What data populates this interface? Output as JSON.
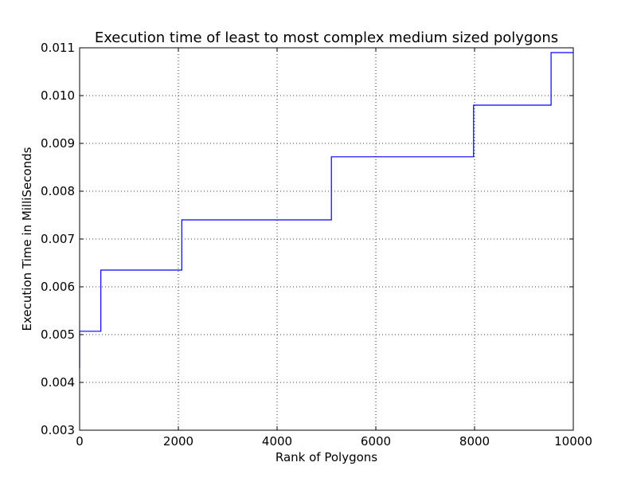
{
  "chart_data": {
    "type": "line",
    "step": true,
    "title": "Execution time of least to most complex medium sized polygons",
    "xlabel": "Rank of Polygons",
    "ylabel": "Execution Time in MilliSeconds",
    "xlim": [
      0,
      10000
    ],
    "ylim": [
      0.003,
      0.011
    ],
    "grid": true,
    "x_ticks": [
      0,
      2000,
      4000,
      6000,
      8000,
      10000
    ],
    "x_tick_labels": [
      "0",
      "2000",
      "4000",
      "6000",
      "8000",
      "10000"
    ],
    "y_ticks": [
      0.003,
      0.004,
      0.005,
      0.006,
      0.007,
      0.008,
      0.009,
      0.01,
      0.011
    ],
    "y_tick_labels": [
      "0.003",
      "0.004",
      "0.005",
      "0.006",
      "0.007",
      "0.008",
      "0.009",
      "0.010",
      "0.011"
    ],
    "line_color": "#0000ff",
    "series": [
      {
        "x": [
          0,
          0,
          430,
          430,
          2070,
          2070,
          5100,
          5100,
          7980,
          7980,
          9550,
          9550,
          10000
        ],
        "y": [
          0.0043,
          0.00507,
          0.00507,
          0.00635,
          0.00635,
          0.0074,
          0.0074,
          0.00872,
          0.00872,
          0.0098,
          0.0098,
          0.0109,
          0.0109
        ]
      }
    ]
  }
}
